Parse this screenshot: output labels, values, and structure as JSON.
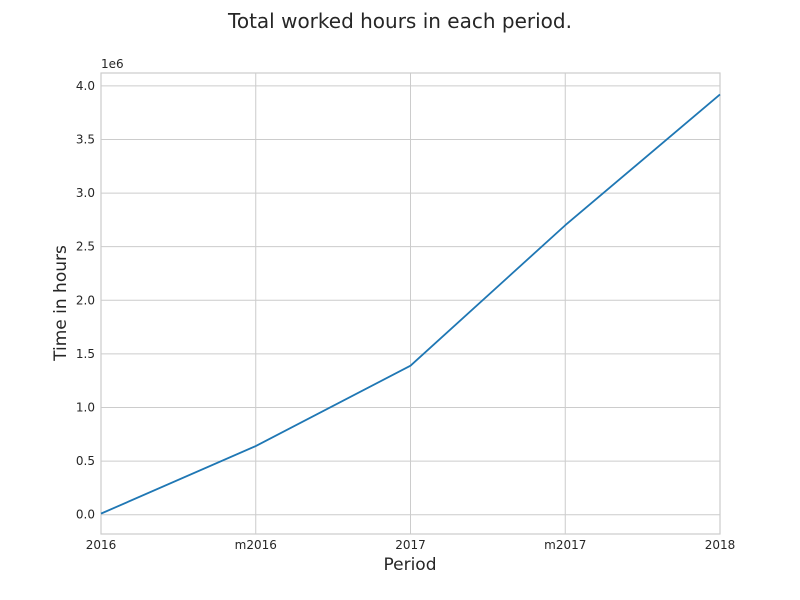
{
  "chart_data": {
    "type": "line",
    "title": "Total worked hours in each period.",
    "xlabel": "Period",
    "ylabel": "Time in hours",
    "y_scale_label": "1e6",
    "categories": [
      "2016",
      "m2016",
      "2017",
      "m2017",
      "2018"
    ],
    "series": [
      {
        "values": [
          10000,
          640000,
          1390000,
          2700000,
          3920000
        ]
      }
    ],
    "yticks": [
      0.0,
      0.5,
      1.0,
      1.5,
      2.0,
      2.5,
      3.0,
      3.5,
      4.0
    ],
    "ytick_labels": [
      "0.0",
      "0.5",
      "1.0",
      "1.5",
      "2.0",
      "2.5",
      "3.0",
      "3.5",
      "4.0"
    ],
    "ylim": [
      -180000,
      4120000
    ],
    "grid": true,
    "colors": {
      "series": "#1f77b4"
    }
  }
}
